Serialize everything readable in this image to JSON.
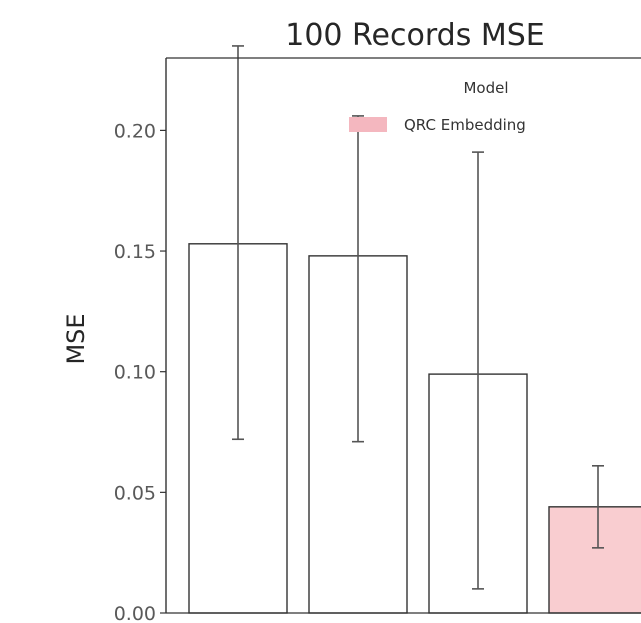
{
  "chart_data": {
    "type": "bar",
    "title": "100 Records MSE",
    "xlabel": "",
    "ylabel": "MSE",
    "ylim": [
      0,
      0.23
    ],
    "yticks": [
      "0.00",
      "0.05",
      "0.10",
      "0.15",
      "0.20"
    ],
    "grid": false,
    "legend": {
      "title": "Model",
      "position": "top-right",
      "entries": [
        {
          "label": "QRC Embedding",
          "color": "#f4b7bf"
        }
      ]
    },
    "bars": [
      {
        "value": 0.153,
        "err_low": 0.072,
        "err_high": 0.235,
        "fill": "#ffffff"
      },
      {
        "value": 0.148,
        "err_low": 0.071,
        "err_high": 0.206,
        "fill": "#ffffff"
      },
      {
        "value": 0.099,
        "err_low": 0.01,
        "err_high": 0.191,
        "fill": "#ffffff"
      },
      {
        "value": 0.044,
        "err_low": 0.027,
        "err_high": 0.061,
        "fill": "#f9cdd0"
      }
    ],
    "colors": {
      "bar_edge": "#333333",
      "error_bar": "#555555",
      "axis": "#333333"
    }
  }
}
